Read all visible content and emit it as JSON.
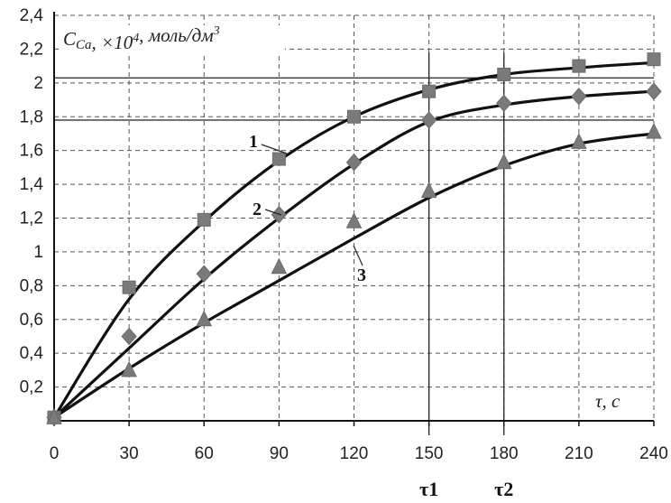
{
  "chart_data": {
    "type": "line",
    "ylabel": "C_Ca, ×10^4, моль/дм^3",
    "xlabel": "τ, с",
    "x": [
      0,
      30,
      60,
      90,
      120,
      150,
      180,
      210,
      240
    ],
    "xlim": [
      0,
      240
    ],
    "ylim": [
      0,
      2.4
    ],
    "x_ticks": [
      "0",
      "30",
      "60",
      "90",
      "120",
      "150",
      "180",
      "210",
      "240"
    ],
    "y_ticks": [
      "0,2",
      "0,4",
      "0,6",
      "0,8",
      "1",
      "1,2",
      "1,4",
      "1,6",
      "1,8",
      "2",
      "2,2",
      "2,4"
    ],
    "grid": true,
    "series": [
      {
        "name": "1",
        "marker": "square",
        "points": [
          [
            0,
            0.02
          ],
          [
            30,
            0.79
          ],
          [
            60,
            1.19
          ],
          [
            90,
            1.55
          ],
          [
            120,
            1.8
          ],
          [
            150,
            1.95
          ],
          [
            180,
            2.05
          ],
          [
            210,
            2.1
          ],
          [
            240,
            2.14
          ]
        ],
        "curve": [
          [
            0,
            0.02
          ],
          [
            30,
            0.72
          ],
          [
            60,
            1.18
          ],
          [
            90,
            1.54
          ],
          [
            120,
            1.8
          ],
          [
            150,
            1.96
          ],
          [
            180,
            2.05
          ],
          [
            210,
            2.09
          ],
          [
            240,
            2.12
          ]
        ]
      },
      {
        "name": "2",
        "marker": "diamond",
        "points": [
          [
            0,
            0.02
          ],
          [
            30,
            0.5
          ],
          [
            60,
            0.87
          ],
          [
            90,
            1.22
          ],
          [
            120,
            1.53
          ],
          [
            150,
            1.78
          ],
          [
            180,
            1.88
          ],
          [
            210,
            1.92
          ],
          [
            240,
            1.95
          ]
        ],
        "curve": [
          [
            0,
            0.02
          ],
          [
            30,
            0.43
          ],
          [
            60,
            0.84
          ],
          [
            90,
            1.2
          ],
          [
            120,
            1.52
          ],
          [
            150,
            1.77
          ],
          [
            180,
            1.87
          ],
          [
            210,
            1.92
          ],
          [
            240,
            1.95
          ]
        ]
      },
      {
        "name": "3",
        "marker": "triangle",
        "points": [
          [
            0,
            0.02
          ],
          [
            30,
            0.3
          ],
          [
            60,
            0.6
          ],
          [
            90,
            0.91
          ],
          [
            120,
            1.18
          ],
          [
            150,
            1.36
          ],
          [
            180,
            1.53
          ],
          [
            210,
            1.65
          ],
          [
            240,
            1.71
          ]
        ],
        "curve": [
          [
            0,
            0.02
          ],
          [
            30,
            0.31
          ],
          [
            60,
            0.58
          ],
          [
            90,
            0.83
          ],
          [
            120,
            1.08
          ],
          [
            150,
            1.32
          ],
          [
            180,
            1.51
          ],
          [
            210,
            1.64
          ],
          [
            240,
            1.7
          ]
        ]
      }
    ],
    "reference_lines": {
      "horizontal": [
        1.78,
        2.03
      ],
      "vertical": [
        150,
        180
      ]
    },
    "annotations": [
      "τ1",
      "τ2"
    ]
  }
}
